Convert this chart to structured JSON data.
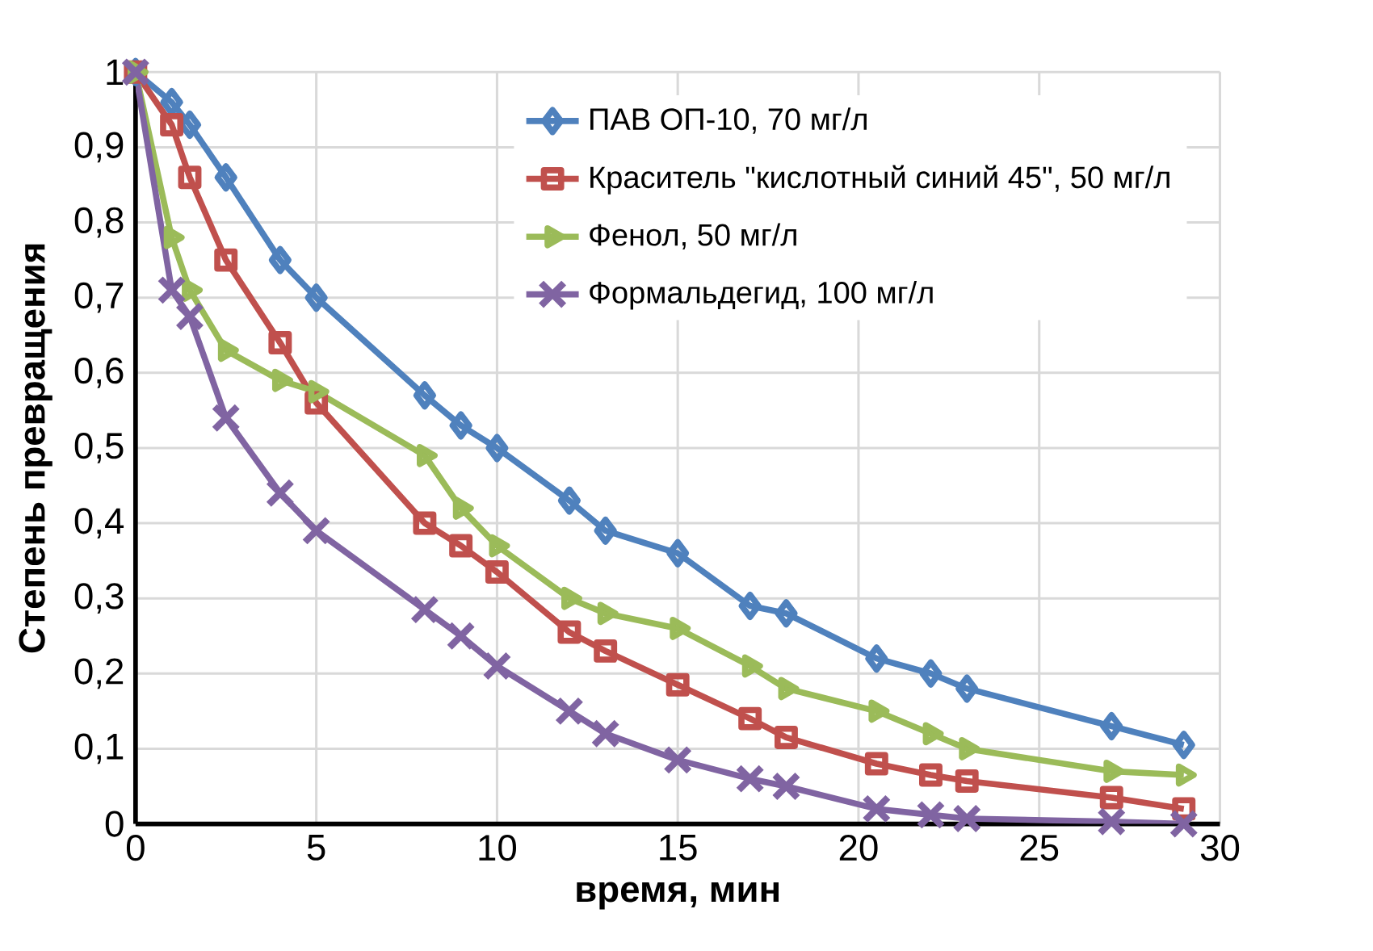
{
  "chart_data": {
    "type": "line",
    "xlabel": "время, мин",
    "ylabel": "Степень превращения",
    "xlim": [
      0,
      30
    ],
    "xticks": [
      0,
      5,
      10,
      15,
      20,
      25,
      30
    ],
    "ylim": [
      0,
      1
    ],
    "yticks": [
      0,
      {
        "value": 0.1,
        "label": "0,1"
      },
      {
        "value": 0.2,
        "label": "0,2"
      },
      {
        "value": 0.3,
        "label": "0,3"
      },
      {
        "value": 0.4,
        "label": "0,4"
      },
      {
        "value": 0.5,
        "label": "0,5"
      },
      {
        "value": 0.6,
        "label": "0,6"
      },
      {
        "value": 0.7,
        "label": "0,7"
      },
      {
        "value": 0.8,
        "label": "0,8"
      },
      {
        "value": 0.9,
        "label": "0,9"
      },
      1
    ],
    "grid": true,
    "legend": "top right",
    "line_style": "solid",
    "x": [
      0,
      1,
      1.5,
      2.5,
      4,
      5,
      8,
      9,
      10,
      12,
      13,
      15,
      17,
      18,
      20.5,
      22,
      23,
      27,
      29
    ],
    "series": [
      {
        "name": "ПАВ ОП-10, 70 мг/л",
        "color": "#4f81bd",
        "marker": "diamond",
        "values": [
          1,
          0.96,
          0.93,
          0.86,
          0.75,
          0.7,
          0.57,
          0.53,
          0.5,
          0.43,
          0.39,
          0.36,
          0.29,
          0.28,
          0.22,
          0.2,
          0.18,
          0.13,
          0.105
        ]
      },
      {
        "name": "Краситель \"кислотный синий 45\", 50 мг/л",
        "color": "#c0504d",
        "marker": "square",
        "values": [
          1,
          0.93,
          0.86,
          0.75,
          0.64,
          0.56,
          0.4,
          0.37,
          0.335,
          0.255,
          0.23,
          0.185,
          0.14,
          0.115,
          0.08,
          0.065,
          0.057,
          0.035,
          0.02
        ]
      },
      {
        "name": "Фенол, 50 мг/л",
        "color": "#9bbb59",
        "marker": "triangle",
        "values": [
          1,
          0.78,
          0.71,
          0.63,
          0.59,
          0.575,
          0.49,
          0.42,
          0.37,
          0.3,
          0.28,
          0.26,
          0.21,
          0.18,
          0.15,
          0.12,
          0.1,
          0.07,
          0.065
        ]
      },
      {
        "name": "Формальдегид, 100 мг/л",
        "color": "#8064a2",
        "marker": "cross",
        "values": [
          1,
          0.71,
          0.675,
          0.54,
          0.44,
          0.39,
          0.285,
          0.25,
          0.21,
          0.15,
          0.12,
          0.085,
          0.06,
          0.05,
          0.02,
          0.012,
          0.007,
          0.003,
          0.0
        ]
      }
    ]
  }
}
